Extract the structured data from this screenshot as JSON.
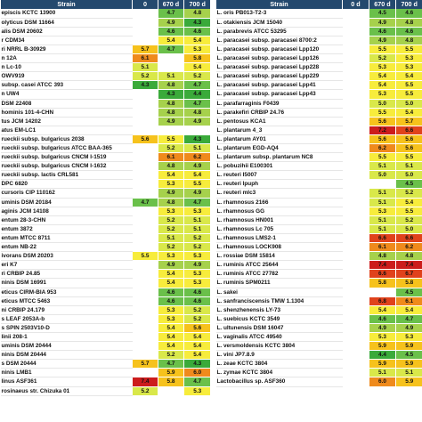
{
  "headers": {
    "left": [
      "Strain",
      "0",
      "670 d",
      "700 d"
    ],
    "right": [
      "Strain",
      "0 d",
      "670 d",
      "700 d"
    ]
  },
  "colors": {
    "header_bg": "#24496e",
    "scale": [
      "#3aaa3a",
      "#6ac04a",
      "#a6d14c",
      "#d9e84a",
      "#f7ec3c",
      "#f6c21c",
      "#ef8a1c",
      "#e0421c",
      "#cc1c1c"
    ]
  },
  "left_rows": [
    {
      "strain": "episcis KCTC 13900",
      "v0": "",
      "v1": "4.7",
      "v2": "4.8"
    },
    {
      "strain": "olyticus DSM 11664",
      "v0": "",
      "v1": "4.9",
      "v2": "4.3"
    },
    {
      "strain": "alis DSM 20602",
      "v0": "",
      "v1": "4.6",
      "v2": "4.6"
    },
    {
      "strain": "r CDM34",
      "v0": "",
      "v1": "5.4",
      "v2": "5.4"
    },
    {
      "strain": "ri NRRL B-30929",
      "v0": "5.7",
      "v1": "4.7",
      "v2": "5.3"
    },
    {
      "strain": "n 12A",
      "v0": "6.1",
      "v1": "",
      "v2": "5.8"
    },
    {
      "strain": "n Lc-10",
      "v0": "5.1",
      "v1": "",
      "v2": "5.4"
    },
    {
      "strain": "OWV919",
      "v0": "5.2",
      "v1": "5.1",
      "v2": "5.2"
    },
    {
      "strain": "subsp. casei ATCC 393",
      "v0": "4.3",
      "v1": "4.8",
      "v2": "4.7"
    },
    {
      "strain": "n UW4",
      "v0": "",
      "v1": "4.3",
      "v2": "4.4"
    },
    {
      "strain": "DSM 22408",
      "v0": "",
      "v1": "4.8",
      "v2": "4.7"
    },
    {
      "strain": "hominis 101-4-CHN",
      "v0": "",
      "v1": "4.8",
      "v2": "4.8"
    },
    {
      "strain": "tus JCM 14202",
      "v0": "",
      "v1": "4.9",
      "v2": "4.9"
    },
    {
      "strain": "atus EM-LC1",
      "v0": "",
      "v1": "",
      "v2": ""
    },
    {
      "strain": "rueckii subsp. bulgaricus 2038",
      "v0": "5.6",
      "v1": "5.5",
      "v2": "4.3"
    },
    {
      "strain": "rueckii subsp. bulgaricus ATCC BAA-365",
      "v0": "",
      "v1": "5.2",
      "v2": "5.1"
    },
    {
      "strain": "rueckii subsp. bulgaricus CNCM I-1519",
      "v0": "",
      "v1": "6.1",
      "v2": "6.2"
    },
    {
      "strain": "rueckii subsp. bulgaricus CNCM I-1632",
      "v0": "",
      "v1": "4.8",
      "v2": "4.9"
    },
    {
      "strain": "rueckii subsp. lactis CRL581",
      "v0": "",
      "v1": "5.4",
      "v2": "5.4"
    },
    {
      "strain": "DPC 6820",
      "v0": "",
      "v1": "5.3",
      "v2": "5.5"
    },
    {
      "strain": "cursoris CIP 110162",
      "v0": "",
      "v1": "4.9",
      "v2": "4.9"
    },
    {
      "strain": "uminis DSM 20184",
      "v0": "4.7",
      "v1": "4.8",
      "v2": "4.7"
    },
    {
      "strain": "aginis JCM 14108",
      "v0": "",
      "v1": "5.3",
      "v2": "5.3"
    },
    {
      "strain": "entum 28-3-CHN",
      "v0": "",
      "v1": "5.2",
      "v2": "5.1"
    },
    {
      "strain": "entum 3872",
      "v0": "",
      "v1": "5.2",
      "v2": "5.1"
    },
    {
      "strain": "entum MTCC 8711",
      "v0": "",
      "v1": "5.1",
      "v2": "5.2"
    },
    {
      "strain": "entum NB-22",
      "v0": "",
      "v1": "5.2",
      "v2": "5.2"
    },
    {
      "strain": "ivorans DSM 20203",
      "v0": "5.5",
      "v1": "5.3",
      "v2": "5.3"
    },
    {
      "strain": "eri K7",
      "v0": "",
      "v1": "4.9",
      "v2": "4.9"
    },
    {
      "strain": "ri CRBIP 24.85",
      "v0": "",
      "v1": "5.4",
      "v2": "5.3"
    },
    {
      "strain": "ninis DSM 16991",
      "v0": "",
      "v1": "5.4",
      "v2": "5.3"
    },
    {
      "strain": "eticus CIRM-BIA 953",
      "v0": "",
      "v1": "4.6",
      "v2": "4.6"
    },
    {
      "strain": "eticus MTCC 5463",
      "v0": "",
      "v1": "4.6",
      "v2": "4.6"
    },
    {
      "strain": "ni CRBIP 24.179",
      "v0": "",
      "v1": "5.3",
      "v2": "5.2"
    },
    {
      "strain": "s LEAF 2053A-b",
      "v0": "",
      "v1": "5.3",
      "v2": "5.2"
    },
    {
      "strain": "s SPIN 2503V10-D",
      "v0": "",
      "v1": "5.4",
      "v2": "5.6"
    },
    {
      "strain": "linii 208-1",
      "v0": "",
      "v1": "5.4",
      "v2": "5.4"
    },
    {
      "strain": "uminis DSM 20444",
      "v0": "",
      "v1": "5.4",
      "v2": "5.4"
    },
    {
      "strain": "ninis DSM 20444",
      "v0": "",
      "v1": "5.2",
      "v2": "5.4"
    },
    {
      "strain": "s DSM 20444",
      "v0": "5.7",
      "v1": "4.7",
      "v2": "4.3"
    },
    {
      "strain": "ninis LMB1",
      "v0": "",
      "v1": "5.9",
      "v2": "6.0"
    },
    {
      "strain": "linus ASF361",
      "v0": "7.4",
      "v1": "5.8",
      "v2": "4.7"
    },
    {
      "strain": "rosinaeus str. Chizuka 01",
      "v0": "5.2",
      "v1": "",
      "v2": "5.3"
    }
  ],
  "right_rows": [
    {
      "strain": "L. oris PB013-T2-3",
      "v0": "",
      "v1": "4.5",
      "v2": "4.6"
    },
    {
      "strain": "L. otakiensis JCM 15040",
      "v0": "",
      "v1": "4.9",
      "v2": "4.8"
    },
    {
      "strain": "L. parabrevis ATCC 53295",
      "v0": "",
      "v1": "4.6",
      "v2": "4.6"
    },
    {
      "strain": "L. paracasei subsp. paracasei 8700:2",
      "v0": "",
      "v1": "4.9",
      "v2": "4.8"
    },
    {
      "strain": "L. paracasei subsp. paracasei Lpp120",
      "v0": "",
      "v1": "5.5",
      "v2": "5.5"
    },
    {
      "strain": "L. paracasei subsp. paracasei Lpp126",
      "v0": "",
      "v1": "5.2",
      "v2": "5.3"
    },
    {
      "strain": "L. paracasei subsp. paracasei Lpp228",
      "v0": "",
      "v1": "5.3",
      "v2": "5.3"
    },
    {
      "strain": "L. paracasei subsp. paracasei Lpp229",
      "v0": "",
      "v1": "5.4",
      "v2": "5.4"
    },
    {
      "strain": "L. paracasei subsp. paracasei Lpp41",
      "v0": "",
      "v1": "5.4",
      "v2": "5.5"
    },
    {
      "strain": "L. paracasei subsp. paracasei Lpp43",
      "v0": "",
      "v1": "5.3",
      "v2": "5.5"
    },
    {
      "strain": "L. parafarraginis F0439",
      "v0": "",
      "v1": "5.0",
      "v2": "5.0"
    },
    {
      "strain": "L. parakefiri CRBIP 24.76",
      "v0": "",
      "v1": "5.5",
      "v2": "5.4"
    },
    {
      "strain": "L. pentosus KCA1",
      "v0": "",
      "v1": "5.6",
      "v2": "5.7"
    },
    {
      "strain": "L. plantarum 4_3",
      "v0": "",
      "v1": "7.2",
      "v2": "6.6"
    },
    {
      "strain": "L. plantarum AY01",
      "v0": "",
      "v1": "5.6",
      "v2": "5.6"
    },
    {
      "strain": "L. plantarum EGD-AQ4",
      "v0": "",
      "v1": "6.2",
      "v2": "5.6"
    },
    {
      "strain": "L. plantarum subsp. plantarum NC8",
      "v0": "",
      "v1": "5.5",
      "v2": "5.5"
    },
    {
      "strain": "L. pobuzihii E100301",
      "v0": "",
      "v1": "5.1",
      "v2": "5.1"
    },
    {
      "strain": "L. reuteri I5007",
      "v0": "",
      "v1": "5.0",
      "v2": "5.0"
    },
    {
      "strain": "L. reuteri lpuph",
      "v0": "",
      "v1": "",
      "v2": "4.5"
    },
    {
      "strain": "L. reuteri mlc3",
      "v0": "",
      "v1": "5.1",
      "v2": "5.2"
    },
    {
      "strain": "L. rhamnosus 2166",
      "v0": "",
      "v1": "5.1",
      "v2": "5.4"
    },
    {
      "strain": "L. rhamnosus GG",
      "v0": "",
      "v1": "5.3",
      "v2": "5.5"
    },
    {
      "strain": "L. rhamnosus HN001",
      "v0": "",
      "v1": "5.1",
      "v2": "5.2"
    },
    {
      "strain": "L. rhamnosus Lc 705",
      "v0": "",
      "v1": "5.1",
      "v2": "5.0"
    },
    {
      "strain": "L. rhamnosus LMS2-1",
      "v0": "",
      "v1": "6.6",
      "v2": "6.6"
    },
    {
      "strain": "L. rhamnosus LOCK908",
      "v0": "",
      "v1": "6.1",
      "v2": "6.2"
    },
    {
      "strain": "L. rossiae DSM 15814",
      "v0": "",
      "v1": "4.8",
      "v2": "4.8"
    },
    {
      "strain": "L. ruminis ATCC 25644",
      "v0": "",
      "v1": "7.4",
      "v2": "7.4"
    },
    {
      "strain": "L. ruminis ATCC 27782",
      "v0": "",
      "v1": "6.6",
      "v2": "6.7"
    },
    {
      "strain": "L. ruminis SPM0211",
      "v0": "",
      "v1": "5.8",
      "v2": "5.8"
    },
    {
      "strain": "L. sakei",
      "v0": "",
      "v1": "",
      "v2": "4.5"
    },
    {
      "strain": "L. sanfranciscensis TMW 1.1304",
      "v0": "",
      "v1": "6.8",
      "v2": "6.1"
    },
    {
      "strain": "L. shenzhenensis LY-73",
      "v0": "",
      "v1": "5.4",
      "v2": "5.4"
    },
    {
      "strain": "L. suebicus KCTC 3549",
      "v0": "",
      "v1": "4.6",
      "v2": "4.7"
    },
    {
      "strain": "L. ultunensis DSM 16047",
      "v0": "",
      "v1": "4.9",
      "v2": "4.9"
    },
    {
      "strain": "L. vaginalis ATCC 49540",
      "v0": "",
      "v1": "5.3",
      "v2": "5.3"
    },
    {
      "strain": "L. versmoldensis KCTC 3804",
      "v0": "",
      "v1": "5.9",
      "v2": "5.9"
    },
    {
      "strain": "L. vini JP7.8.9",
      "v0": "",
      "v1": "4.4",
      "v2": "4.5"
    },
    {
      "strain": "L. zeae KCTC 3804",
      "v0": "",
      "v1": "5.9",
      "v2": "5.9"
    },
    {
      "strain": "L. zymae KCTC 3804",
      "v0": "",
      "v1": "5.1",
      "v2": "5.1"
    },
    {
      "strain": "Lactobacillus sp. ASF360",
      "v0": "",
      "v1": "6.0",
      "v2": "5.9"
    }
  ]
}
